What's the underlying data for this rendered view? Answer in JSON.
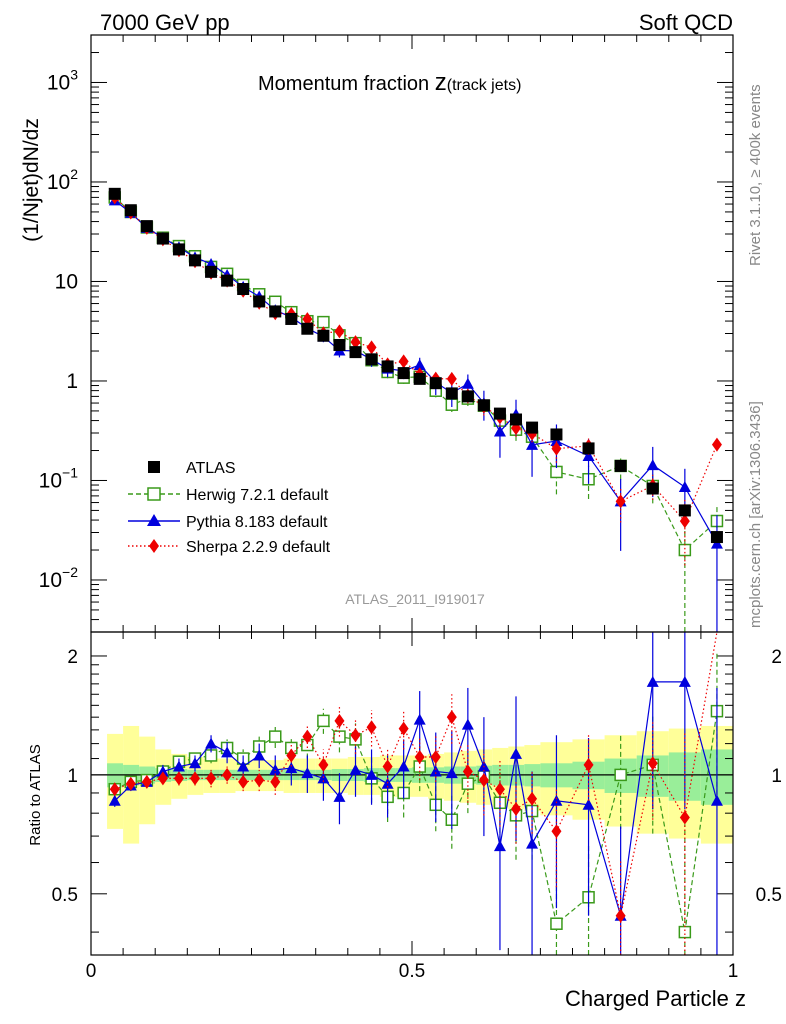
{
  "header": {
    "left": "7000 GeV pp",
    "right": "Soft QCD",
    "side_rivet": "Rivet 3.1.10, ≥ 400k events",
    "side_mcplots": "mcplots.cern.ch [arXiv:1306.3436]",
    "analysis_id": "ATLAS_2011_I919017"
  },
  "colors": {
    "atlas": "#000000",
    "herwig": "#3a9a1a",
    "pythia": "#0000dd",
    "sherpa": "#ee0000",
    "band_yellow": "#ffff99",
    "band_green": "#99ee99"
  },
  "chart_data": {
    "type": "line",
    "title_main": "Momentum fraction ",
    "title_var": "z",
    "title_sub": "(track jets)",
    "xlabel": "Charged Particle z",
    "ylabel": "(1/Njet)dN/dz",
    "ratio_ylabel": "Ratio to ATLAS",
    "xlim": [
      0,
      1
    ],
    "ylim": [
      0.003,
      3000
    ],
    "ratio_ylim": [
      0.35,
      2.3
    ],
    "yscale": "log",
    "x_ticks": [
      {
        "v": 0,
        "label": "0"
      },
      {
        "v": 0.5,
        "label": "0.5"
      },
      {
        "v": 1,
        "label": "1"
      }
    ],
    "y_ticks": [
      {
        "v": 0.01,
        "base": "10",
        "exp": "−2"
      },
      {
        "v": 0.1,
        "base": "10",
        "exp": "−1"
      },
      {
        "v": 1,
        "base": "1",
        "exp": ""
      },
      {
        "v": 10,
        "base": "10",
        "exp": ""
      },
      {
        "v": 100,
        "base": "10",
        "exp": "2"
      },
      {
        "v": 1000,
        "base": "10",
        "exp": "3"
      }
    ],
    "ratio_ticks": [
      {
        "v": 0.5,
        "label": "0.5"
      },
      {
        "v": 1,
        "label": "1"
      },
      {
        "v": 2,
        "label": "2"
      }
    ],
    "x": [
      0.037,
      0.062,
      0.087,
      0.112,
      0.137,
      0.162,
      0.187,
      0.212,
      0.237,
      0.262,
      0.287,
      0.312,
      0.337,
      0.362,
      0.387,
      0.412,
      0.437,
      0.462,
      0.487,
      0.512,
      0.537,
      0.562,
      0.587,
      0.612,
      0.637,
      0.662,
      0.687,
      0.725,
      0.775,
      0.825,
      0.875,
      0.925,
      0.975
    ],
    "band_x": [
      0.025,
      0.05,
      0.075,
      0.1,
      0.125,
      0.15,
      0.175,
      0.2,
      0.225,
      0.25,
      0.275,
      0.3,
      0.325,
      0.35,
      0.375,
      0.4,
      0.425,
      0.45,
      0.475,
      0.5,
      0.525,
      0.55,
      0.575,
      0.6,
      0.625,
      0.65,
      0.675,
      0.7,
      0.75,
      0.8,
      0.85,
      0.9,
      0.95,
      1.0
    ],
    "band_green": [
      0.07,
      0.06,
      0.05,
      0.04,
      0.035,
      0.03,
      0.03,
      0.03,
      0.03,
      0.03,
      0.03,
      0.03,
      0.03,
      0.03,
      0.035,
      0.035,
      0.04,
      0.04,
      0.04,
      0.045,
      0.045,
      0.05,
      0.05,
      0.055,
      0.06,
      0.06,
      0.065,
      0.07,
      0.08,
      0.1,
      0.12,
      0.14,
      0.16
    ],
    "band_yellow": [
      0.27,
      0.33,
      0.25,
      0.16,
      0.13,
      0.11,
      0.1,
      0.1,
      0.09,
      0.09,
      0.09,
      0.1,
      0.1,
      0.1,
      0.1,
      0.11,
      0.11,
      0.12,
      0.12,
      0.12,
      0.13,
      0.14,
      0.15,
      0.16,
      0.17,
      0.18,
      0.19,
      0.21,
      0.23,
      0.26,
      0.29,
      0.31,
      0.33
    ],
    "series": [
      {
        "name": "ATLAS",
        "label": "ATLAS",
        "marker": "square",
        "line": "none",
        "values": [
          76,
          52,
          36,
          27,
          21,
          16.3,
          12.5,
          10.2,
          8.4,
          6.3,
          5.0,
          4.2,
          3.35,
          2.85,
          2.3,
          1.95,
          1.65,
          1.4,
          1.2,
          1.05,
          0.95,
          0.75,
          0.7,
          0.57,
          0.47,
          0.41,
          0.34,
          0.29,
          0.21,
          0.14,
          0.083,
          0.05,
          0.027
        ],
        "errors": []
      },
      {
        "name": "Herwig",
        "label": "Herwig 7.2.1 default",
        "marker": "open-square",
        "line": "dashed",
        "ratio": [
          0.92,
          0.96,
          0.97,
          1.02,
          1.08,
          1.1,
          1.12,
          1.17,
          1.1,
          1.18,
          1.25,
          1.17,
          1.19,
          1.37,
          1.25,
          1.23,
          0.98,
          0.88,
          0.9,
          1.05,
          0.84,
          0.77,
          0.95,
          0.99,
          0.85,
          0.79,
          0.81,
          0.42,
          0.49,
          1.0,
          1.06,
          0.4,
          1.45
        ],
        "ratio_err": [
          0.03,
          0.03,
          0.03,
          0.04,
          0.05,
          0.05,
          0.05,
          0.06,
          0.06,
          0.07,
          0.08,
          0.08,
          0.09,
          0.1,
          0.11,
          0.12,
          0.13,
          0.12,
          0.12,
          0.14,
          0.12,
          0.12,
          0.15,
          0.17,
          0.17,
          0.18,
          0.2,
          0.17,
          0.18,
          0.27,
          0.35,
          0.35,
          0.6
        ]
      },
      {
        "name": "Pythia",
        "label": "Pythia 8.183 default",
        "marker": "triangle",
        "line": "solid",
        "ratio": [
          0.86,
          0.94,
          0.96,
          1.02,
          1.05,
          1.07,
          1.2,
          1.14,
          1.05,
          1.12,
          1.03,
          1.04,
          1.01,
          0.98,
          0.88,
          1.03,
          1.0,
          0.95,
          1.05,
          1.38,
          1.02,
          1.01,
          1.34,
          1.05,
          0.66,
          1.13,
          0.67,
          0.86,
          0.84,
          0.44,
          1.72,
          1.72,
          0.86
        ],
        "ratio_err": [
          0.03,
          0.03,
          0.03,
          0.04,
          0.05,
          0.05,
          0.06,
          0.07,
          0.07,
          0.08,
          0.09,
          0.1,
          0.11,
          0.12,
          0.13,
          0.15,
          0.16,
          0.17,
          0.18,
          0.25,
          0.26,
          0.28,
          0.32,
          0.35,
          0.3,
          0.45,
          0.35,
          0.4,
          0.4,
          0.3,
          0.9,
          0.9,
          0.8
        ]
      },
      {
        "name": "Sherpa",
        "label": "Sherpa 2.2.9 default",
        "marker": "diamond",
        "line": "dotted",
        "ratio": [
          0.92,
          0.95,
          0.96,
          0.98,
          0.98,
          0.98,
          0.98,
          1.0,
          0.96,
          0.97,
          0.96,
          1.12,
          1.25,
          1.06,
          1.37,
          1.26,
          1.32,
          1.05,
          1.31,
          1.11,
          1.11,
          1.4,
          1.02,
          0.97,
          0.92,
          0.82,
          0.87,
          0.72,
          1.06,
          0.44,
          1.07,
          0.78,
          8.5
        ],
        "ratio_err": [
          0.03,
          0.03,
          0.03,
          0.03,
          0.04,
          0.04,
          0.05,
          0.05,
          0.05,
          0.06,
          0.07,
          0.07,
          0.08,
          0.1,
          0.12,
          0.13,
          0.14,
          0.12,
          0.15,
          0.14,
          0.15,
          0.2,
          0.17,
          0.18,
          0.18,
          0.15,
          0.16,
          0.2,
          0.2,
          0.17,
          0.3,
          0.5,
          1.2
        ]
      }
    ]
  }
}
